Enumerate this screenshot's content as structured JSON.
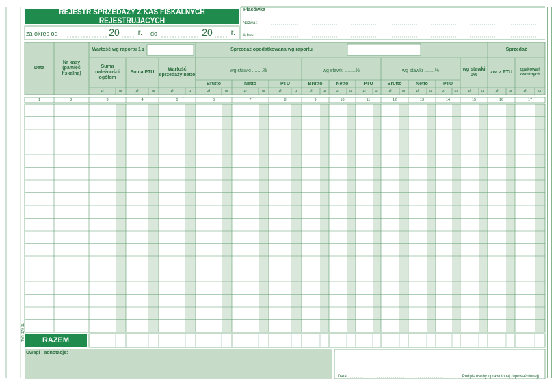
{
  "header": {
    "title": "REJESTR SPRZEDAŻY Z KAS FISKALNYCH REJESTRUJĄCYCH",
    "period_from": "za okres od",
    "century": "20",
    "year_end": "r.",
    "period_to": "do"
  },
  "outlet": {
    "title": "Placówka",
    "name_label": "Nazwa :",
    "address_label": "Adres :"
  },
  "table": {
    "date": "Data",
    "register": "Nr kasy (pamięć fiskalna)",
    "report_group": "Wartość wg raportu 1 z",
    "report_columns": [
      "Suma należności ogółem",
      "Suma PTU",
      "Wartość sprzedaży netto"
    ],
    "taxed_group": "Sprzedaż opodatkowana wg raportu",
    "rate_label": "wg stawki ........%",
    "rate_columns": [
      "Brutto",
      "Netto",
      "PTU"
    ],
    "zero_rate": "wg stawki 0%",
    "sales_group": "Sprzedaż",
    "sales_columns": [
      "zw. z PTU",
      "opakowań zwrotnych"
    ],
    "units": [
      "zł",
      "gr"
    ],
    "column_numbers": [
      1,
      2,
      3,
      4,
      5,
      6,
      7,
      8,
      9,
      10,
      11,
      12,
      13,
      14,
      15,
      16,
      17
    ],
    "total": "RAZEM"
  },
  "footer": {
    "notes": "Uwagi i adnotacje:",
    "date": "Data",
    "signature": "Podpis osoby uprawnionej (upoważnionej)"
  },
  "side": {
    "form_code": "TYP. 170-1U"
  }
}
